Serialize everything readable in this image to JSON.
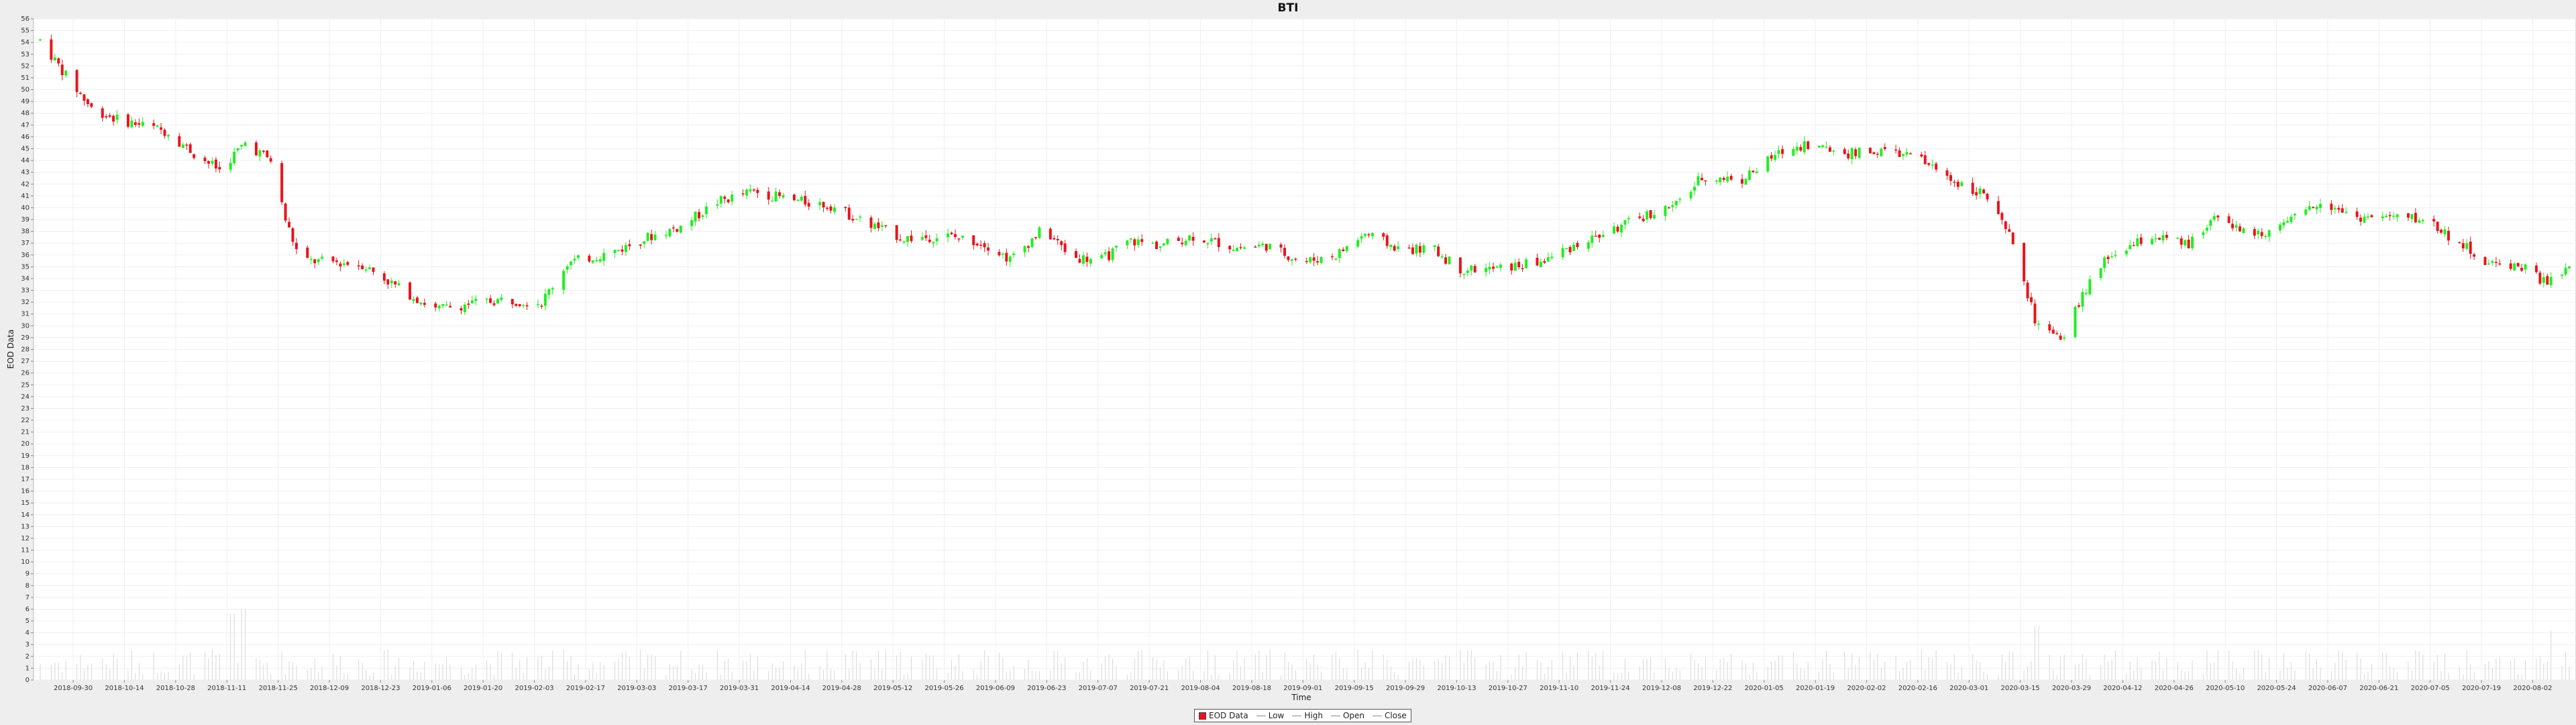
{
  "chart_data": {
    "type": "candlestick",
    "title": "BTI",
    "xlabel": "Time",
    "ylabel": "EOD Data",
    "ylim": [
      0,
      56
    ],
    "x_range": [
      "2018-09-21",
      "2020-08-12"
    ],
    "x_ticks": [
      "2018-09-30",
      "2018-10-14",
      "2018-10-28",
      "2018-11-11",
      "2018-11-25",
      "2018-12-09",
      "2018-12-23",
      "2019-01-06",
      "2019-01-20",
      "2019-02-03",
      "2019-02-17",
      "2019-03-03",
      "2019-03-17",
      "2019-03-31",
      "2019-04-14",
      "2019-04-28",
      "2019-05-12",
      "2019-05-26",
      "2019-06-09",
      "2019-06-23",
      "2019-07-07",
      "2019-07-21",
      "2019-08-04",
      "2019-08-18",
      "2019-09-01",
      "2019-09-15",
      "2019-09-29",
      "2019-10-13",
      "2019-10-27",
      "2019-11-10",
      "2019-11-24",
      "2019-12-08",
      "2019-12-22",
      "2020-01-05",
      "2020-01-19",
      "2020-02-02",
      "2020-02-16",
      "2020-03-01",
      "2020-03-15",
      "2020-03-29",
      "2020-04-12",
      "2020-04-26",
      "2020-05-10",
      "2020-05-24",
      "2020-06-07",
      "2020-06-21",
      "2020-07-05",
      "2020-07-19",
      "2020-08-02"
    ],
    "y_ticks": [
      0,
      1,
      2,
      3,
      4,
      5,
      6,
      7,
      8,
      9,
      10,
      11,
      12,
      13,
      14,
      15,
      16,
      17,
      18,
      19,
      20,
      21,
      22,
      23,
      24,
      25,
      26,
      27,
      28,
      29,
      30,
      31,
      32,
      33,
      34,
      35,
      36,
      37,
      38,
      39,
      40,
      41,
      42,
      43,
      44,
      45,
      46,
      47,
      48,
      49,
      50,
      51,
      52,
      53,
      54,
      55,
      56
    ],
    "grid": true,
    "up_color": "#22ee22",
    "down_color": "#e8151b",
    "volume_color": "#d8d8d8",
    "price_path": [
      [
        "2018-09-21",
        54.2
      ],
      [
        "2018-09-28",
        51.2
      ],
      [
        "2018-10-05",
        48.4
      ],
      [
        "2018-10-12",
        47.5
      ],
      [
        "2018-10-19",
        47.0
      ],
      [
        "2018-10-26",
        46.4
      ],
      [
        "2018-11-02",
        44.6
      ],
      [
        "2018-11-09",
        43.2
      ],
      [
        "2018-11-16",
        45.5
      ],
      [
        "2018-11-23",
        44.0
      ],
      [
        "2018-11-27",
        39.0
      ],
      [
        "2018-12-01",
        35.5
      ],
      [
        "2018-12-10",
        35.4
      ],
      [
        "2018-12-18",
        35.2
      ],
      [
        "2018-12-28",
        33.2
      ],
      [
        "2019-01-07",
        31.4
      ],
      [
        "2019-01-15",
        31.8
      ],
      [
        "2019-01-25",
        32.2
      ],
      [
        "2019-02-05",
        32.0
      ],
      [
        "2019-02-12",
        35.3
      ],
      [
        "2019-02-25",
        36.3
      ],
      [
        "2019-03-06",
        37.5
      ],
      [
        "2019-03-15",
        38.4
      ],
      [
        "2019-03-25",
        40.5
      ],
      [
        "2019-04-04",
        41.4
      ],
      [
        "2019-04-15",
        40.6
      ],
      [
        "2019-04-25",
        40.2
      ],
      [
        "2019-05-04",
        38.8
      ],
      [
        "2019-05-15",
        37.4
      ],
      [
        "2019-05-27",
        37.6
      ],
      [
        "2019-06-06",
        37.0
      ],
      [
        "2019-06-13",
        35.6
      ],
      [
        "2019-06-22",
        38.2
      ],
      [
        "2019-06-30",
        35.8
      ],
      [
        "2019-07-08",
        35.6
      ],
      [
        "2019-07-16",
        37.2
      ],
      [
        "2019-07-24",
        36.8
      ],
      [
        "2019-08-02",
        37.6
      ],
      [
        "2019-08-14",
        36.6
      ],
      [
        "2019-08-22",
        36.8
      ],
      [
        "2019-09-01",
        35.4
      ],
      [
        "2019-09-10",
        36.0
      ],
      [
        "2019-09-18",
        37.8
      ],
      [
        "2019-09-28",
        36.4
      ],
      [
        "2019-10-06",
        36.6
      ],
      [
        "2019-10-14",
        34.8
      ],
      [
        "2019-10-24",
        34.8
      ],
      [
        "2019-11-05",
        35.4
      ],
      [
        "2019-11-14",
        36.8
      ],
      [
        "2019-11-24",
        38.0
      ],
      [
        "2019-12-04",
        39.4
      ],
      [
        "2019-12-12",
        40.2
      ],
      [
        "2019-12-19",
        42.6
      ],
      [
        "2019-12-30",
        42.4
      ],
      [
        "2020-01-09",
        44.6
      ],
      [
        "2020-01-16",
        45.4
      ],
      [
        "2020-01-28",
        44.6
      ],
      [
        "2020-02-08",
        44.8
      ],
      [
        "2020-02-16",
        44.2
      ],
      [
        "2020-02-25",
        42.4
      ],
      [
        "2020-03-05",
        41.2
      ],
      [
        "2020-03-13",
        37.0
      ],
      [
        "2020-03-19",
        30.5
      ],
      [
        "2020-03-26",
        28.6
      ],
      [
        "2020-04-01",
        32.6
      ],
      [
        "2020-04-08",
        35.8
      ],
      [
        "2020-04-20",
        37.6
      ],
      [
        "2020-04-30",
        36.8
      ],
      [
        "2020-05-08",
        39.6
      ],
      [
        "2020-05-16",
        37.6
      ],
      [
        "2020-05-26",
        38.4
      ],
      [
        "2020-06-05",
        40.6
      ],
      [
        "2020-06-15",
        39.2
      ],
      [
        "2020-06-24",
        39.2
      ],
      [
        "2020-07-04",
        39.0
      ],
      [
        "2020-07-13",
        37.0
      ],
      [
        "2020-07-21",
        35.2
      ],
      [
        "2020-07-29",
        35.2
      ],
      [
        "2020-08-06",
        33.6
      ],
      [
        "2020-08-12",
        34.8
      ]
    ],
    "volume_spikes": [
      [
        "2018-11-12",
        5.6
      ],
      [
        "2018-11-16",
        6.0
      ],
      [
        "2020-03-20",
        4.6
      ],
      [
        "2020-08-08",
        4.2
      ]
    ],
    "legend": {
      "placement": "bottom-center",
      "entries": [
        {
          "label": "EOD Data",
          "swatch": "box"
        },
        {
          "label": "Low",
          "swatch": "line"
        },
        {
          "label": "High",
          "swatch": "line"
        },
        {
          "label": "Open",
          "swatch": "line"
        },
        {
          "label": "Close",
          "swatch": "line"
        }
      ]
    }
  }
}
